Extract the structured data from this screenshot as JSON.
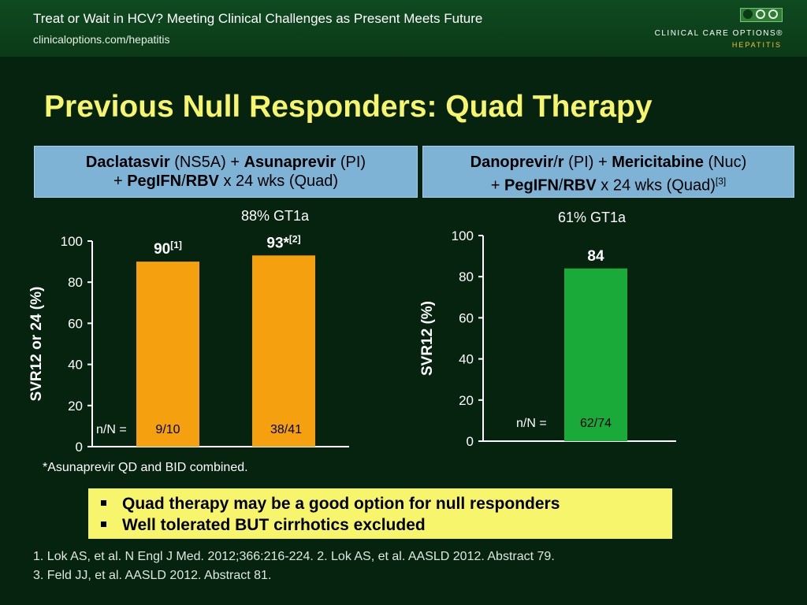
{
  "header": {
    "title": "Treat or Wait in HCV? Meeting Clinical Challenges as Present Meets Future",
    "url": "clinicaloptions.com/hepatitis",
    "logo_name": "CLINICAL CARE OPTIONS®",
    "logo_sub": "HEPATITIS"
  },
  "slide_title": "Previous Null Responders: Quad Therapy",
  "box_left": {
    "drug1": "Daclatasvir",
    "class1": "(NS5A)",
    "plus1": "+",
    "drug2": "Asunaprevir",
    "class2": "(PI)",
    "plus2": "+",
    "drug3": "PegIFN",
    "slash": "/",
    "drug4": "RBV",
    "tail": "x 24 wks (Quad)"
  },
  "box_right": {
    "drug1": "Danoprevir",
    "slash1": "/",
    "drug1b": "r",
    "class1": "(PI)",
    "plus1": "+",
    "drug2": "Mericitabine",
    "class2": "(Nuc)",
    "plus2": "+",
    "drug3": "PegIFN",
    "slash2": "/",
    "drug4": "RBV",
    "tail": "x 24 wks (Quad)",
    "ref": "[3]"
  },
  "chart_data": [
    {
      "type": "bar",
      "subtitle": "88% GT1a",
      "ylabel": "SVR12 or 24 (%)",
      "ylim": [
        0,
        100
      ],
      "yticks": [
        0,
        20,
        40,
        60,
        80,
        100
      ],
      "n_label": "n/N =",
      "bar_color": "#f5a00f",
      "series": [
        {
          "values": [
            90,
            93
          ],
          "value_labels": [
            "90",
            "93*"
          ],
          "refs": [
            "[1]",
            "[2]"
          ],
          "n": [
            "9/10",
            "38/41"
          ]
        }
      ]
    },
    {
      "type": "bar",
      "subtitle": "61% GT1a",
      "ylabel": "SVR12 (%)",
      "ylim": [
        0,
        100
      ],
      "yticks": [
        0,
        20,
        40,
        60,
        80,
        100
      ],
      "n_label": "n/N =",
      "bar_color": "#1aaa3a",
      "series": [
        {
          "values": [
            84
          ],
          "value_labels": [
            "84"
          ],
          "refs": [
            ""
          ],
          "n": [
            "62/74"
          ]
        }
      ]
    }
  ],
  "footnote": "*Asunaprevir QD and BID combined.",
  "bullets": [
    "Quad therapy may be a good option for null responders",
    "Well tolerated BUT cirrhotics excluded"
  ],
  "refs": [
    "1. Lok AS, et al. N Engl J Med. 2012;366:216-224. 2. Lok AS, et al. AASLD 2012. Abstract 79.",
    "3. Feld JJ, et al. AASLD 2012. Abstract 81."
  ]
}
